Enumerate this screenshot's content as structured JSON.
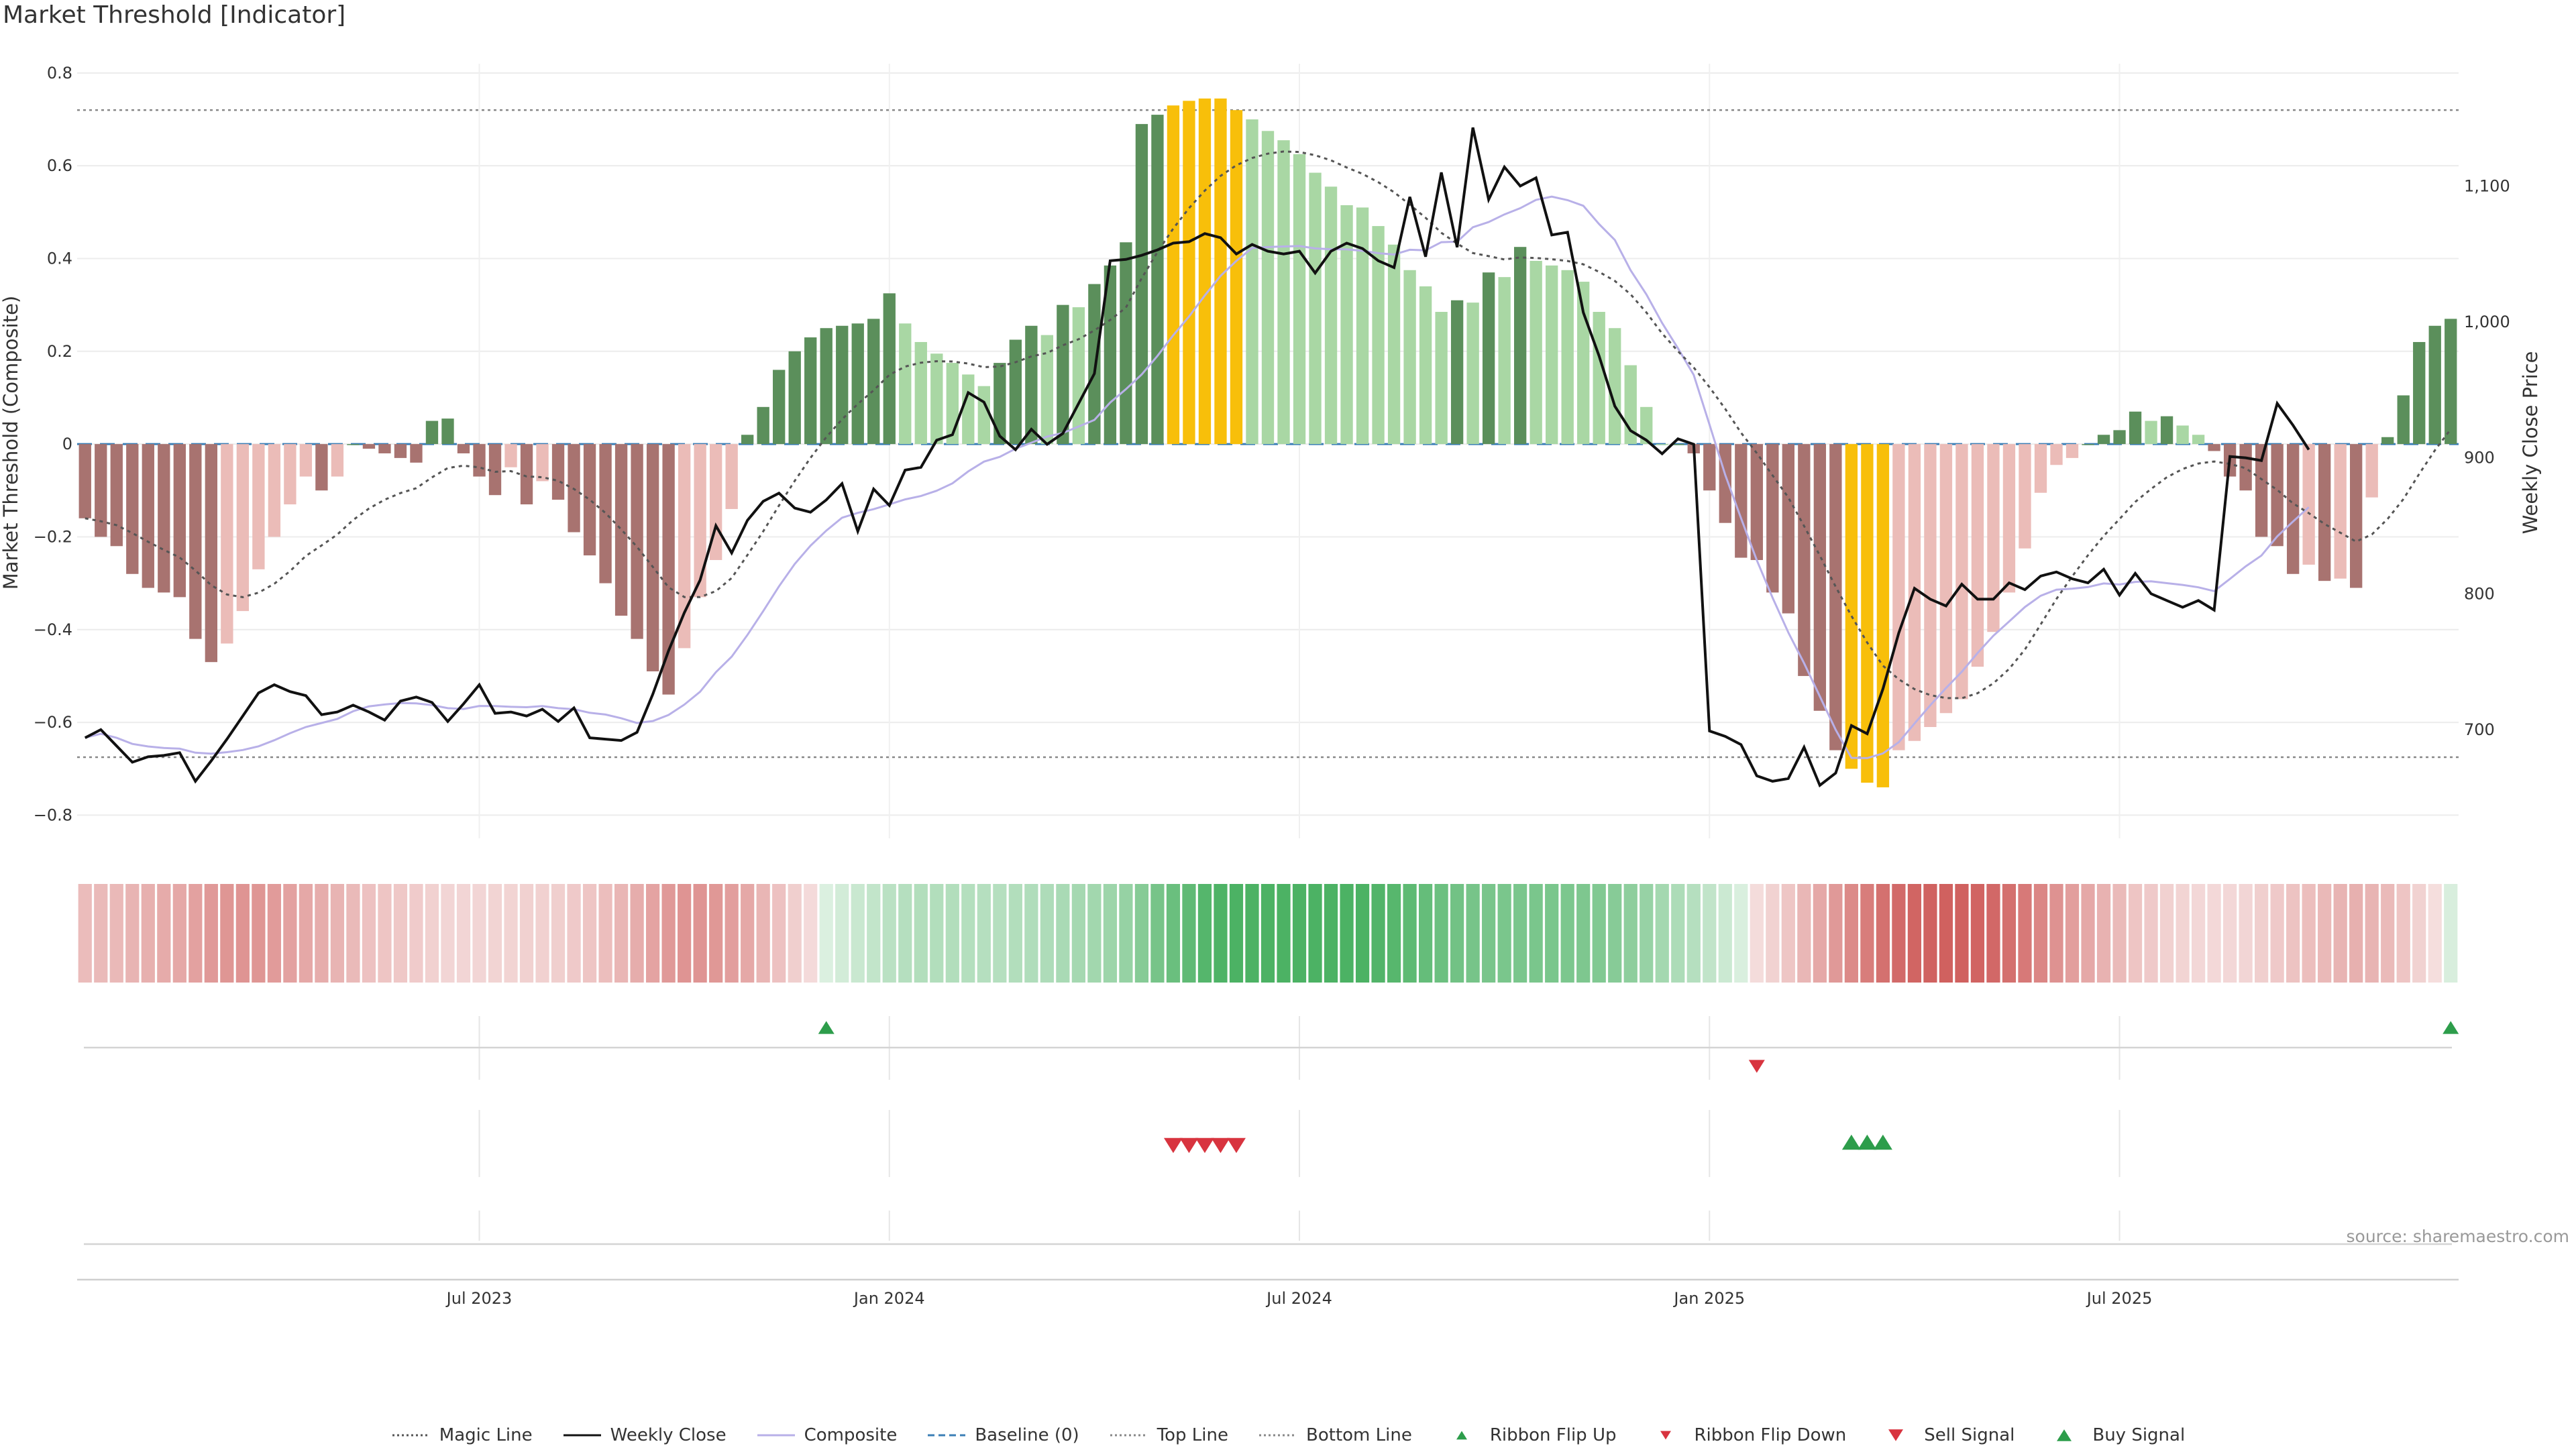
{
  "title": "Market Threshold [Indicator]",
  "source_note": "source: sharemaestro.com",
  "colors": {
    "bull_strong": "#5b8f5b",
    "bull_weak": "#a9d7a4",
    "bear_strong": "#a87370",
    "bear_weak": "#ebbcb8",
    "extreme": "#f8bf0a",
    "magic": "#555555",
    "close": "#111111",
    "composite": "#b8b0e8",
    "baseline": "#3b7fb6",
    "guide": "#888888",
    "buy": "#2d9d4b",
    "sell": "#d8343f"
  },
  "legend": [
    {
      "key": "magic",
      "label": "Magic Line",
      "icon": "dotted-line-icon"
    },
    {
      "key": "close",
      "label": "Weekly Close",
      "icon": "solid-line-icon"
    },
    {
      "key": "composite",
      "label": "Composite",
      "icon": "solid-line-icon"
    },
    {
      "key": "baseline",
      "label": "Baseline (0)",
      "icon": "dashed-line-icon"
    },
    {
      "key": "top",
      "label": "Top Line",
      "icon": "dotted-line-icon"
    },
    {
      "key": "bottom",
      "label": "Bottom Line",
      "icon": "dotted-line-icon"
    },
    {
      "key": "flip_up",
      "label": "Ribbon Flip Up",
      "icon": "triangle-up-icon"
    },
    {
      "key": "flip_down",
      "label": "Ribbon Flip Down",
      "icon": "triangle-down-icon"
    },
    {
      "key": "sell",
      "label": "Sell Signal",
      "icon": "triangle-down-icon"
    },
    {
      "key": "buy",
      "label": "Buy Signal",
      "icon": "triangle-up-icon"
    }
  ],
  "chart_data": {
    "type": "bar",
    "ylabel": "Market Threshold (Composite)",
    "y2label": "Weekly Close Price",
    "ylim": [
      -0.85,
      0.82
    ],
    "yticks": [
      -0.8,
      -0.6,
      -0.4,
      -0.2,
      0,
      0.2,
      0.4,
      0.6,
      0.8
    ],
    "ytick_labels": [
      "−0.8",
      "−0.6",
      "−0.4",
      "−0.2",
      "0",
      "0.2",
      "0.4",
      "0.6",
      "0.8"
    ],
    "y2lim": [
      620,
      1190
    ],
    "y2ticks": [
      700,
      800,
      900,
      1000,
      1100
    ],
    "y2tick_labels": [
      "700",
      "800",
      "900",
      "1,000",
      "1,100"
    ],
    "x_start": "2023-01-06",
    "x_interval": "weekly",
    "xticks": [
      "Jul 2023",
      "Jan 2024",
      "Jul 2024",
      "Jan 2025",
      "Jul 2025"
    ],
    "xtick_index": [
      25,
      51,
      77,
      103,
      129
    ],
    "top_line": 0.72,
    "bottom_line": -0.675,
    "baseline": 0,
    "grid": true,
    "legend_position": "bottom",
    "composite": [
      -0.16,
      -0.2,
      -0.22,
      -0.28,
      -0.31,
      -0.32,
      -0.33,
      -0.42,
      -0.47,
      -0.43,
      -0.36,
      -0.27,
      -0.2,
      -0.13,
      -0.07,
      -0.1,
      -0.07,
      0,
      -0.01,
      -0.02,
      -0.03,
      -0.04,
      0.05,
      0.055,
      -0.02,
      -0.07,
      -0.11,
      -0.05,
      -0.13,
      -0.08,
      -0.12,
      -0.19,
      -0.24,
      -0.3,
      -0.37,
      -0.42,
      -0.49,
      -0.54,
      -0.44,
      -0.33,
      -0.25,
      -0.14,
      0.02,
      0.08,
      0.16,
      0.2,
      0.23,
      0.25,
      0.255,
      0.26,
      0.27,
      0.325,
      0.26,
      0.22,
      0.195,
      0.175,
      0.15,
      0.125,
      0.175,
      0.225,
      0.255,
      0.235,
      0.3,
      0.295,
      0.345,
      0.385,
      0.435,
      0.69,
      0.71,
      0.73,
      0.74,
      0.745,
      0.745,
      0.72,
      0.7,
      0.675,
      0.655,
      0.625,
      0.585,
      0.555,
      0.515,
      0.51,
      0.47,
      0.43,
      0.375,
      0.34,
      0.285,
      0.31,
      0.305,
      0.37,
      0.36,
      0.425,
      0.395,
      0.385,
      0.375,
      0.35,
      0.285,
      0.25,
      0.17,
      0.08,
      0,
      0,
      -0.02,
      -0.1,
      -0.17,
      -0.245,
      -0.25,
      -0.32,
      -0.365,
      -0.5,
      -0.575,
      -0.66,
      -0.7,
      -0.73,
      -0.74,
      -0.66,
      -0.64,
      -0.61,
      -0.58,
      -0.55,
      -0.48,
      -0.405,
      -0.32,
      -0.225,
      -0.105,
      -0.045,
      -0.03,
      0,
      0.02,
      0.03,
      0.07,
      0.05,
      0.06,
      0.04,
      0.02,
      -0.015,
      -0.07,
      -0.1,
      -0.2,
      -0.22,
      -0.28,
      -0.26,
      -0.295,
      -0.29,
      -0.31,
      -0.115,
      0.015,
      0.105,
      0.22,
      0.255,
      0.27
    ],
    "close": [
      694,
      700,
      688,
      676,
      680,
      681,
      683,
      662,
      677,
      693,
      710,
      727,
      733,
      728,
      725,
      711,
      713,
      718,
      713,
      707,
      721,
      724,
      720,
      706,
      719,
      733,
      712,
      713,
      710,
      715,
      706,
      716,
      694,
      693,
      692,
      698,
      726,
      758,
      786,
      810,
      850,
      830,
      854,
      868,
      874,
      863,
      860,
      869,
      881,
      846,
      877,
      865,
      891,
      893,
      913,
      917,
      948,
      941,
      916,
      906,
      921,
      910,
      918,
      940,
      962,
      1045,
      1046,
      1049,
      1053,
      1058,
      1059,
      1065,
      1062,
      1050,
      1057,
      1052,
      1050,
      1052,
      1036,
      1052,
      1058,
      1054,
      1045,
      1040,
      1092,
      1048,
      1110,
      1055,
      1143,
      1090,
      1114,
      1100,
      1106,
      1064,
      1066,
      1007,
      975,
      938,
      920,
      913,
      903,
      914,
      910,
      699,
      695,
      689,
      666,
      662,
      664,
      687,
      659,
      668,
      703,
      697,
      730,
      771,
      804,
      796,
      791,
      807,
      796,
      796,
      808,
      803,
      813,
      816,
      811,
      808,
      818,
      799,
      815,
      800,
      795,
      790,
      795,
      788,
      901,
      900,
      898,
      940,
      924,
      906
    ]
  }
}
